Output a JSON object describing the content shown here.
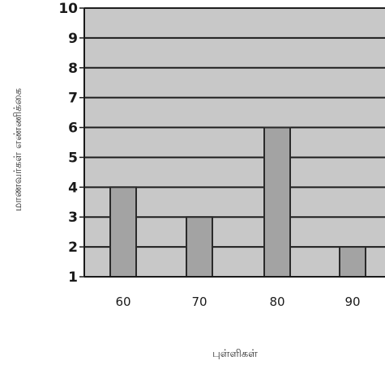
{
  "chart_data": {
    "type": "bar",
    "categories": [
      "60",
      "70",
      "80",
      "90"
    ],
    "values": [
      4,
      3,
      6,
      2
    ],
    "xlabel": "புள்ளிகள்",
    "ylabel": "மாணவர்கள் எண்ணிக்கை",
    "ylim": [
      1,
      10
    ],
    "yticks": [
      "1",
      "2",
      "3",
      "4",
      "5",
      "6",
      "7",
      "8",
      "9",
      "10"
    ],
    "grid": true,
    "colors": {
      "plot_background": "#c8c8c8",
      "bar": "#a3a3a3",
      "bar_stroke": "#2a2a2a",
      "gridline": "#1e1e1e"
    }
  }
}
